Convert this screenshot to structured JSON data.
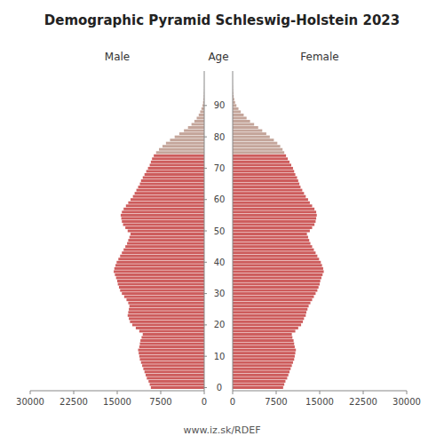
{
  "chart_data": {
    "type": "pyramid",
    "orientation": "horizontal",
    "title": "Demographic Pyramid Schleswig-Holstein 2023",
    "ylabel": "Age",
    "annotations": [
      "www.iz.sk/RDEF"
    ],
    "grid": false,
    "xlim": [
      0,
      30000
    ],
    "xticks": [
      0,
      7500,
      15000,
      22500,
      30000
    ],
    "ylim": [
      -1,
      101
    ],
    "yticks": [
      0,
      10,
      20,
      30,
      40,
      50,
      60,
      70,
      80,
      90
    ],
    "y": [
      0,
      1,
      2,
      3,
      4,
      5,
      6,
      7,
      8,
      9,
      10,
      11,
      12,
      13,
      14,
      15,
      16,
      17,
      18,
      19,
      20,
      21,
      22,
      23,
      24,
      25,
      26,
      27,
      28,
      29,
      30,
      31,
      32,
      33,
      34,
      35,
      36,
      37,
      38,
      39,
      40,
      41,
      42,
      43,
      44,
      45,
      46,
      47,
      48,
      49,
      50,
      51,
      52,
      53,
      54,
      55,
      56,
      57,
      58,
      59,
      60,
      61,
      62,
      63,
      64,
      65,
      66,
      67,
      68,
      69,
      70,
      71,
      72,
      73,
      74,
      75,
      76,
      77,
      78,
      79,
      80,
      81,
      82,
      83,
      84,
      85,
      86,
      87,
      88,
      89,
      90,
      91,
      92,
      93,
      94,
      95,
      96,
      97,
      98,
      99
    ],
    "series": [
      {
        "name": "Male",
        "values": [
          9200,
          9400,
          9600,
          9900,
          10100,
          10300,
          10500,
          10700,
          10900,
          11100,
          11200,
          11300,
          11400,
          11200,
          11100,
          11000,
          10800,
          10600,
          11200,
          11800,
          12400,
          12800,
          13000,
          13200,
          13100,
          13000,
          12900,
          13100,
          13400,
          13800,
          14200,
          14500,
          14700,
          14900,
          15000,
          15200,
          15400,
          15600,
          15500,
          15300,
          15100,
          14800,
          14500,
          14200,
          13900,
          13600,
          13300,
          13100,
          12900,
          12700,
          13200,
          13600,
          14000,
          14200,
          14300,
          14400,
          14200,
          13900,
          13500,
          13100,
          12700,
          12300,
          12000,
          11700,
          11400,
          11100,
          10900,
          10600,
          10300,
          10000,
          9700,
          9400,
          9200,
          9000,
          8700,
          8300,
          7800,
          7200,
          6600,
          5900,
          5100,
          4300,
          3500,
          2800,
          2200,
          1700,
          1300,
          950,
          700,
          480,
          300,
          200,
          130,
          80,
          50,
          30,
          18,
          10,
          5,
          2
        ],
        "colors": [
          "#CD5C5C",
          "#CD5C5C",
          "#CD5C5C",
          "#CD5C5C",
          "#CD5C5C",
          "#CD5C5C",
          "#CD5C5C",
          "#CD5C5C",
          "#CD5C5C",
          "#CD5C5C",
          "#CD5C5C",
          "#CD5C5C",
          "#CD5C5C",
          "#CD5C5C",
          "#CD5C5C",
          "#CD5C5C",
          "#CD5C5C",
          "#CD5C5C",
          "#CD5C5C",
          "#CD5C5C",
          "#CD5C5C",
          "#CD5C5C",
          "#CD5C5C",
          "#CD5C5C",
          "#CD5C5C",
          "#CD5C5C",
          "#CD5C5C",
          "#CD5C5C",
          "#CD5C5C",
          "#CD5C5C",
          "#CD5C5C",
          "#CD5C5C",
          "#CD5C5C",
          "#CD5C5C",
          "#CD5C5C",
          "#CD5C5C",
          "#CD5C5C",
          "#CD5C5C",
          "#CD5C5C",
          "#CD5C5C",
          "#CD5C5C",
          "#CD5C5C",
          "#CD5C5C",
          "#CD5C5C",
          "#CD5C5C",
          "#CD5C5C",
          "#CD5C5C",
          "#CD5C5C",
          "#CD5C5C",
          "#CD5C5C",
          "#CD5C5C",
          "#CD5C5C",
          "#CD5C5C",
          "#CD5C5C",
          "#CD5C5C",
          "#CD5C5C",
          "#CD5C5C",
          "#CD5C5C",
          "#CD5C5C",
          "#CD5C5C",
          "#CD5C5C",
          "#CD5C5C",
          "#CD5C5C",
          "#CD5C5C",
          "#CD5C5C",
          "#CD5C5C",
          "#CD5C5C",
          "#CD5C5C",
          "#CD5C5C",
          "#CD5C5C",
          "#CD5C5C",
          "#CD5C5C",
          "#CD5C5C",
          "#CD5C5C",
          "#CD5C5C",
          "#C4A59A",
          "#C4A59A",
          "#C4A59A",
          "#C4A59A",
          "#C4A59A",
          "#C4A59A",
          "#C4A59A",
          "#C4A59A",
          "#C4A59A",
          "#C4A59A",
          "#C4A59A",
          "#C4A59A",
          "#C4A59A",
          "#C4A59A",
          "#C4A59A",
          "#C4A59A",
          "#C4A59A",
          "#C4A59A",
          "#C4A59A",
          "#C4A59A",
          "#C4A59A",
          "#C4A59A",
          "#C4A59A",
          "#C4A59A",
          "#C4A59A"
        ]
      },
      {
        "name": "Female",
        "values": [
          8700,
          8900,
          9100,
          9400,
          9600,
          9800,
          10000,
          10200,
          10400,
          10600,
          10700,
          10800,
          10900,
          10700,
          10600,
          10500,
          10300,
          10200,
          10800,
          11300,
          11800,
          12100,
          12300,
          12600,
          12700,
          12900,
          13100,
          13400,
          13700,
          14000,
          14300,
          14600,
          14800,
          15000,
          15100,
          15300,
          15500,
          15700,
          15600,
          15400,
          15200,
          14900,
          14600,
          14300,
          14000,
          13700,
          13400,
          13200,
          13000,
          12800,
          13300,
          13700,
          14100,
          14300,
          14400,
          14500,
          14400,
          14100,
          13700,
          13300,
          13000,
          12600,
          12300,
          12000,
          11700,
          11500,
          11300,
          11100,
          10800,
          10600,
          10400,
          10100,
          9800,
          9500,
          9200,
          8900,
          8600,
          8200,
          7700,
          7100,
          6400,
          5800,
          5100,
          4400,
          3700,
          3000,
          2400,
          1900,
          1400,
          1000,
          650,
          430,
          280,
          170,
          100,
          60,
          35,
          20,
          10,
          4
        ],
        "colors": [
          "#CD5C5C",
          "#CD5C5C",
          "#CD5C5C",
          "#CD5C5C",
          "#CD5C5C",
          "#CD5C5C",
          "#CD5C5C",
          "#CD5C5C",
          "#CD5C5C",
          "#CD5C5C",
          "#CD5C5C",
          "#CD5C5C",
          "#CD5C5C",
          "#CD5C5C",
          "#CD5C5C",
          "#CD5C5C",
          "#CD5C5C",
          "#CD5C5C",
          "#CD5C5C",
          "#CD5C5C",
          "#CD5C5C",
          "#CD5C5C",
          "#CD5C5C",
          "#CD5C5C",
          "#CD5C5C",
          "#CD5C5C",
          "#CD5C5C",
          "#CD5C5C",
          "#CD5C5C",
          "#CD5C5C",
          "#CD5C5C",
          "#CD5C5C",
          "#CD5C5C",
          "#CD5C5C",
          "#CD5C5C",
          "#CD5C5C",
          "#CD5C5C",
          "#CD5C5C",
          "#CD5C5C",
          "#CD5C5C",
          "#CD5C5C",
          "#CD5C5C",
          "#CD5C5C",
          "#CD5C5C",
          "#CD5C5C",
          "#CD5C5C",
          "#CD5C5C",
          "#CD5C5C",
          "#CD5C5C",
          "#CD5C5C",
          "#CD5C5C",
          "#CD5C5C",
          "#CD5C5C",
          "#CD5C5C",
          "#CD5C5C",
          "#CD5C5C",
          "#CD5C5C",
          "#CD5C5C",
          "#CD5C5C",
          "#CD5C5C",
          "#CD5C5C",
          "#CD5C5C",
          "#CD5C5C",
          "#CD5C5C",
          "#CD5C5C",
          "#CD5C5C",
          "#CD5C5C",
          "#CD5C5C",
          "#CD5C5C",
          "#CD5C5C",
          "#CD5C5C",
          "#CD5C5C",
          "#CD5C5C",
          "#CD5C5C",
          "#CD5C5C",
          "#C4A59A",
          "#C4A59A",
          "#C4A59A",
          "#C4A59A",
          "#C4A59A",
          "#C4A59A",
          "#C4A59A",
          "#C4A59A",
          "#C4A59A",
          "#C4A59A",
          "#C4A59A",
          "#C4A59A",
          "#C4A59A",
          "#C4A59A",
          "#C4A59A",
          "#C4A59A",
          "#C4A59A",
          "#C4A59A",
          "#C4A59A",
          "#C4A59A",
          "#C4A59A",
          "#C4A59A",
          "#C4A59A",
          "#C4A59A",
          "#C4A59A"
        ]
      }
    ]
  }
}
